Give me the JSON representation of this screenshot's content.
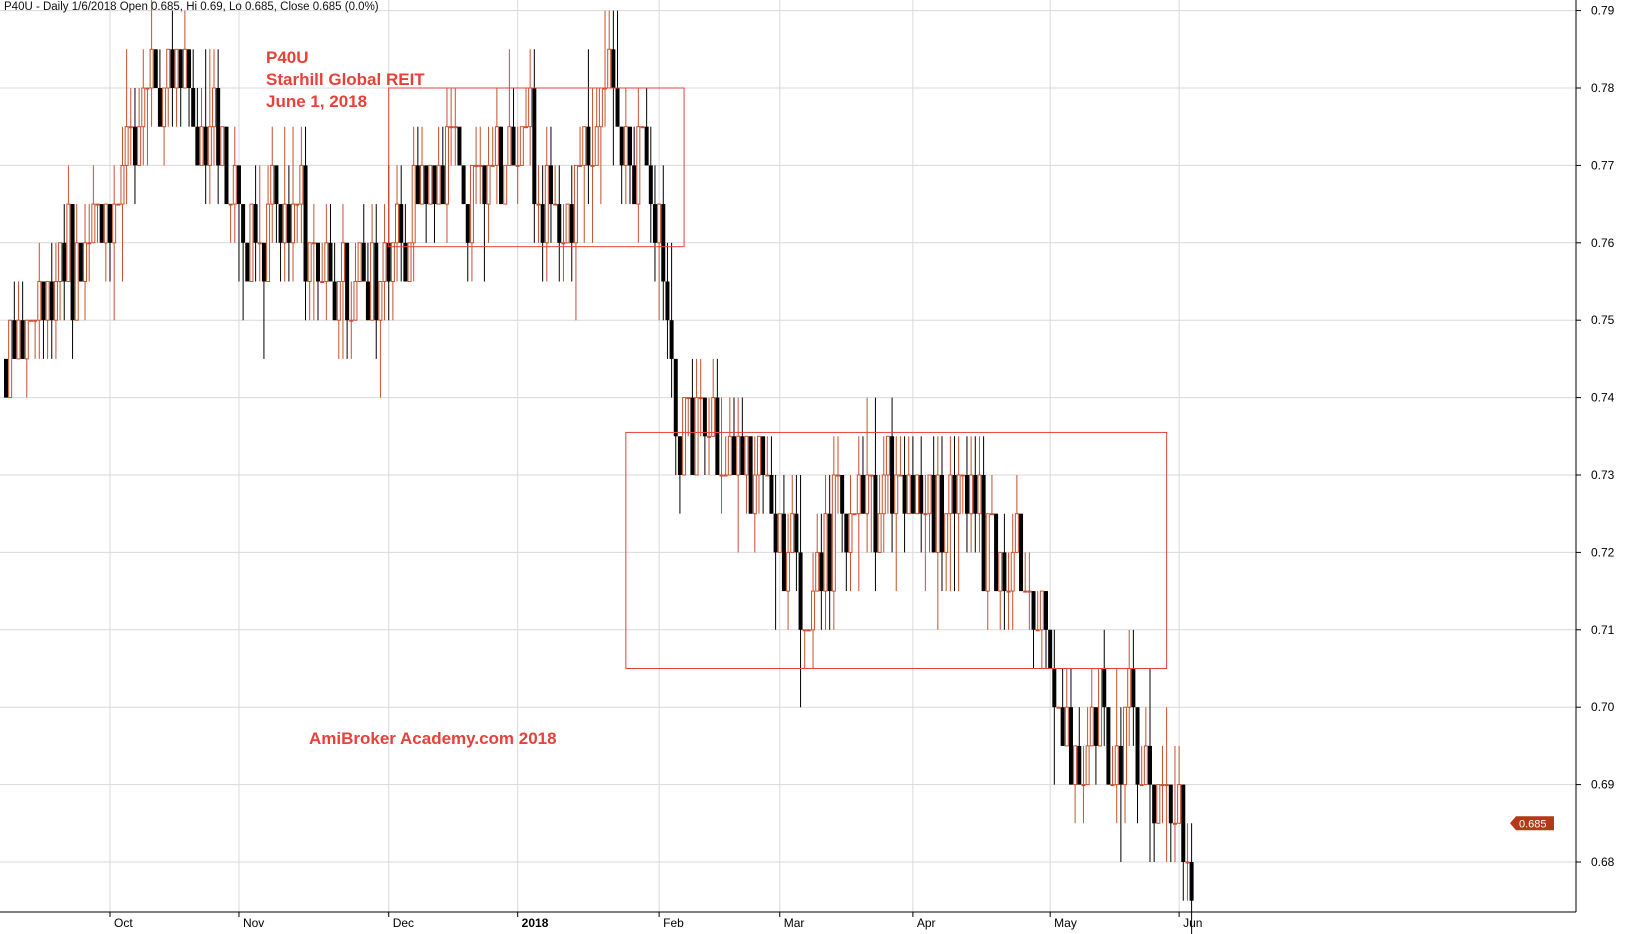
{
  "header": {
    "text": "P40U - Daily 1/6/2018 Open 0.685, Hi 0.69, Lo 0.685, Close 0.685 (0.0%)"
  },
  "annotations": {
    "line1": "P40U",
    "line2": "Starhill Global REIT",
    "line3": "June 1, 2018",
    "watermark": "AmiBroker Academy.com   2018"
  },
  "colors": {
    "up": "#c8502e",
    "down": "#000000",
    "box": "#e8413a",
    "grid": "#d9d9d9",
    "badge": "#b23a18"
  },
  "chart_data": {
    "type": "candlestick",
    "ylim": [
      0.677,
      0.795
    ],
    "yticks": [
      0.68,
      0.69,
      0.7,
      0.71,
      0.72,
      0.73,
      0.74,
      0.75,
      0.76,
      0.77,
      0.78,
      0.79
    ],
    "ytick_labels": [
      "0.68",
      "0.69",
      "0.70",
      "0.71",
      "0.72",
      "0.73",
      "0.74",
      "0.75",
      "0.76",
      "0.77",
      "0.78",
      "0.79"
    ],
    "xlabels": [
      {
        "label": "Oct",
        "index": 25,
        "bold": false
      },
      {
        "label": "Nov",
        "index": 56,
        "bold": false
      },
      {
        "label": "Dec",
        "index": 92,
        "bold": false
      },
      {
        "label": "2018",
        "index": 123,
        "bold": true
      },
      {
        "label": "Feb",
        "index": 157,
        "bold": false
      },
      {
        "label": "Mar",
        "index": 186,
        "bold": false
      },
      {
        "label": "Apr",
        "index": 218,
        "bold": false
      },
      {
        "label": "May",
        "index": 251,
        "bold": false
      },
      {
        "label": "Jun",
        "index": 282,
        "bold": false
      }
    ],
    "last_price": "0.685",
    "boxes": [
      {
        "i0": 92,
        "i1": 163,
        "lo": 0.7595,
        "hi": 0.78
      },
      {
        "i0": 149,
        "i1": 279,
        "lo": 0.705,
        "hi": 0.7355
      }
    ],
    "anchors": [
      [
        0,
        0.745
      ],
      [
        8,
        0.752
      ],
      [
        16,
        0.758
      ],
      [
        24,
        0.762
      ],
      [
        28,
        0.768
      ],
      [
        33,
        0.778
      ],
      [
        39,
        0.784
      ],
      [
        46,
        0.775
      ],
      [
        53,
        0.77
      ],
      [
        60,
        0.758
      ],
      [
        66,
        0.765
      ],
      [
        73,
        0.757
      ],
      [
        80,
        0.75
      ],
      [
        86,
        0.757
      ],
      [
        92,
        0.758
      ],
      [
        98,
        0.765
      ],
      [
        106,
        0.77
      ],
      [
        113,
        0.765
      ],
      [
        120,
        0.77
      ],
      [
        126,
        0.772
      ],
      [
        133,
        0.763
      ],
      [
        140,
        0.772
      ],
      [
        147,
        0.777
      ],
      [
        152,
        0.768
      ],
      [
        156,
        0.765
      ],
      [
        158,
        0.758
      ],
      [
        160,
        0.745
      ],
      [
        161,
        0.74
      ],
      [
        163,
        0.735
      ],
      [
        168,
        0.735
      ],
      [
        175,
        0.73
      ],
      [
        183,
        0.727
      ],
      [
        190,
        0.718
      ],
      [
        195,
        0.715
      ],
      [
        200,
        0.725
      ],
      [
        207,
        0.725
      ],
      [
        214,
        0.73
      ],
      [
        220,
        0.725
      ],
      [
        226,
        0.725
      ],
      [
        232,
        0.725
      ],
      [
        238,
        0.717
      ],
      [
        244,
        0.72
      ],
      [
        249,
        0.71
      ],
      [
        253,
        0.7
      ],
      [
        257,
        0.69
      ],
      [
        263,
        0.7
      ],
      [
        267,
        0.69
      ],
      [
        271,
        0.7
      ],
      [
        275,
        0.685
      ],
      [
        279,
        0.692
      ],
      [
        283,
        0.685
      ]
    ]
  }
}
